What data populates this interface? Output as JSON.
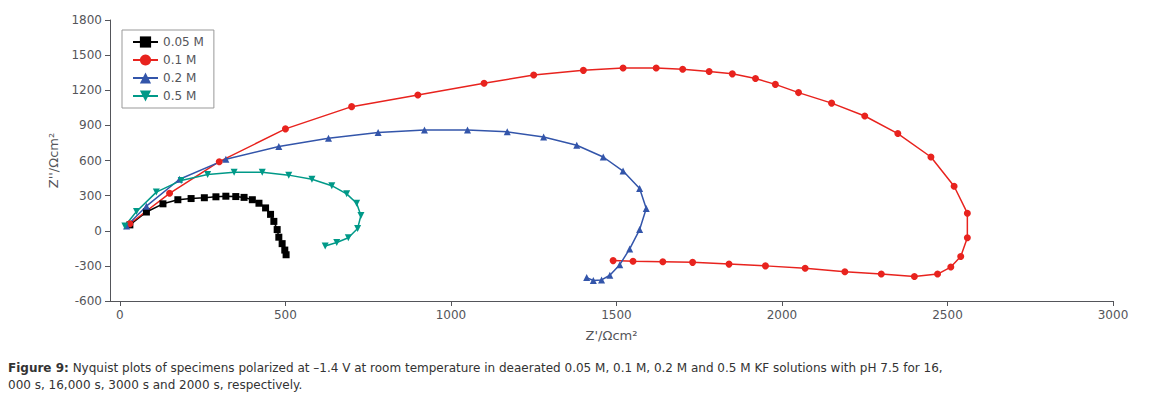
{
  "chart_data": {
    "type": "line",
    "caption": [
      "Figure 9:",
      " Nyquist plots of specimens polarized at –1.4 V at room temperature in deaerated 0.05 M, 0.1 M, 0.2 M and 0.5 M KF solutions with pH 7.5 for 16,000 s, 16,000 s, 3000 s and 2000 s, respectively."
    ],
    "xlabel": "Z'/Ωcm²",
    "ylabel": "Z''/Ωcm²",
    "xlim": [
      -30,
      3000
    ],
    "ylim": [
      -600,
      1800
    ],
    "xticks": [
      0,
      500,
      1000,
      1500,
      2000,
      2500,
      3000
    ],
    "yticks": [
      -600,
      -300,
      0,
      300,
      600,
      900,
      1200,
      1500,
      1800
    ],
    "grid": false,
    "legend": "upper left",
    "series": [
      {
        "name": "0.05 M",
        "color": "#000000",
        "marker": "square",
        "x": [
          30,
          80,
          130,
          175,
          215,
          255,
          290,
          320,
          350,
          375,
          400,
          420,
          440,
          455,
          465,
          475,
          480,
          490,
          498,
          502
        ],
        "values": [
          50,
          160,
          230,
          265,
          275,
          282,
          290,
          295,
          292,
          285,
          265,
          235,
          195,
          140,
          80,
          10,
          -55,
          -110,
          -165,
          -205
        ]
      },
      {
        "name": "0.1 M",
        "color": "#e8231e",
        "marker": "circle",
        "x": [
          30,
          150,
          300,
          500,
          700,
          900,
          1100,
          1250,
          1400,
          1520,
          1620,
          1700,
          1780,
          1850,
          1920,
          1980,
          2050,
          2150,
          2250,
          2350,
          2450,
          2520,
          2560,
          2560,
          2540,
          2510,
          2470,
          2400,
          2300,
          2190,
          2070,
          1950,
          1840,
          1730,
          1640,
          1550,
          1490
        ],
        "values": [
          60,
          320,
          590,
          870,
          1060,
          1160,
          1260,
          1330,
          1370,
          1390,
          1390,
          1380,
          1360,
          1340,
          1300,
          1250,
          1180,
          1090,
          980,
          830,
          630,
          380,
          150,
          -60,
          -220,
          -310,
          -370,
          -390,
          -370,
          -350,
          -320,
          -300,
          -285,
          -270,
          -265,
          -260,
          -255
        ]
      },
      {
        "name": "0.2 M",
        "color": "#3355aa",
        "marker": "triangle-up",
        "x": [
          20,
          80,
          180,
          320,
          480,
          630,
          780,
          920,
          1050,
          1170,
          1280,
          1380,
          1460,
          1520,
          1570,
          1590,
          1570,
          1540,
          1510,
          1480,
          1455,
          1430,
          1410
        ],
        "values": [
          40,
          210,
          440,
          610,
          720,
          790,
          840,
          860,
          860,
          845,
          800,
          730,
          630,
          510,
          360,
          190,
          10,
          -155,
          -290,
          -380,
          -420,
          -425,
          -400
        ]
      },
      {
        "name": "0.5 M",
        "color": "#009988",
        "marker": "triangle-down",
        "x": [
          15,
          50,
          110,
          185,
          265,
          345,
          430,
          510,
          580,
          640,
          685,
          715,
          728,
          718,
          690,
          655,
          620
        ],
        "values": [
          40,
          165,
          330,
          430,
          480,
          500,
          500,
          475,
          440,
          385,
          315,
          235,
          130,
          20,
          -60,
          -100,
          -130
        ]
      }
    ]
  }
}
